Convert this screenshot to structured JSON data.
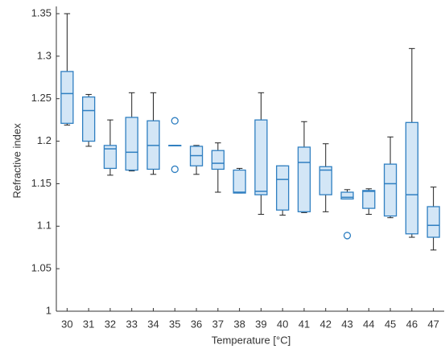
{
  "chart_data": {
    "type": "box",
    "x_label": "Temperature [°C]",
    "y_label": "Refractive index",
    "categories": [
      "30",
      "31",
      "32",
      "33",
      "34",
      "35",
      "36",
      "37",
      "38",
      "39",
      "40",
      "41",
      "42",
      "43",
      "44",
      "45",
      "46",
      "47"
    ],
    "boxes": [
      {
        "min": 1.219,
        "q1": 1.221,
        "median": 1.256,
        "q3": 1.282,
        "max": 1.35,
        "outliers": []
      },
      {
        "min": 1.194,
        "q1": 1.2,
        "median": 1.236,
        "q3": 1.252,
        "max": 1.255,
        "outliers": []
      },
      {
        "min": 1.16,
        "q1": 1.168,
        "median": 1.191,
        "q3": 1.195,
        "max": 1.225,
        "outliers": []
      },
      {
        "min": 1.165,
        "q1": 1.166,
        "median": 1.187,
        "q3": 1.228,
        "max": 1.257,
        "outliers": []
      },
      {
        "min": 1.161,
        "q1": 1.167,
        "median": 1.195,
        "q3": 1.224,
        "max": 1.257,
        "outliers": []
      },
      {
        "min": 1.195,
        "q1": 1.195,
        "median": 1.195,
        "q3": 1.195,
        "max": 1.195,
        "outliers": [
          1.224,
          1.167
        ]
      },
      {
        "min": 1.161,
        "q1": 1.171,
        "median": 1.183,
        "q3": 1.194,
        "max": 1.195,
        "outliers": []
      },
      {
        "min": 1.14,
        "q1": 1.167,
        "median": 1.174,
        "q3": 1.189,
        "max": 1.198,
        "outliers": []
      },
      {
        "min": 1.139,
        "q1": 1.139,
        "median": 1.14,
        "q3": 1.166,
        "max": 1.168,
        "outliers": []
      },
      {
        "min": 1.114,
        "q1": 1.137,
        "median": 1.141,
        "q3": 1.225,
        "max": 1.257,
        "outliers": []
      },
      {
        "min": 1.113,
        "q1": 1.119,
        "median": 1.155,
        "q3": 1.171,
        "max": 1.171,
        "outliers": []
      },
      {
        "min": 1.116,
        "q1": 1.117,
        "median": 1.175,
        "q3": 1.193,
        "max": 1.223,
        "outliers": []
      },
      {
        "min": 1.117,
        "q1": 1.137,
        "median": 1.166,
        "q3": 1.17,
        "max": 1.197,
        "outliers": []
      },
      {
        "min": 1.132,
        "q1": 1.132,
        "median": 1.134,
        "q3": 1.14,
        "max": 1.143,
        "outliers": [
          1.089
        ]
      },
      {
        "min": 1.114,
        "q1": 1.121,
        "median": 1.141,
        "q3": 1.142,
        "max": 1.144,
        "outliers": []
      },
      {
        "min": 1.11,
        "q1": 1.112,
        "median": 1.15,
        "q3": 1.173,
        "max": 1.205,
        "outliers": []
      },
      {
        "min": 1.087,
        "q1": 1.091,
        "median": 1.137,
        "q3": 1.222,
        "max": 1.309,
        "outliers": []
      },
      {
        "min": 1.072,
        "q1": 1.087,
        "median": 1.101,
        "q3": 1.123,
        "max": 1.146,
        "outliers": []
      }
    ],
    "box_color": "#2f7fc1",
    "box_fill": "#d3e6f6",
    "whisker_color": "#222222",
    "ylim": [
      1,
      1.35
    ],
    "yticks": [
      1,
      1.05,
      1.1,
      1.15,
      1.2,
      1.25,
      1.3,
      1.35
    ]
  }
}
